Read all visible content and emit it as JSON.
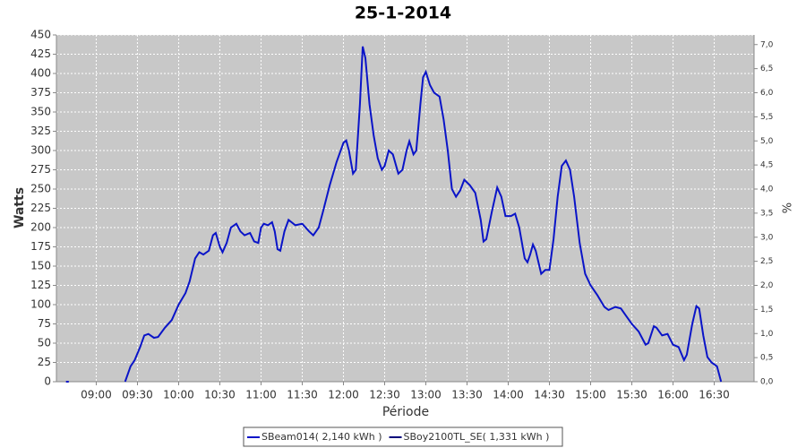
{
  "chart_data": {
    "type": "line",
    "title": "25-1-2014",
    "y_label": "Watts",
    "y2_label": "%",
    "x_label": "Période",
    "x": [
      "08:38",
      "08:40",
      null,
      "09:21",
      "09:25",
      "09:28",
      "09:32",
      "09:35",
      "09:38",
      "09:42",
      "09:45",
      "09:50",
      "09:55",
      "10:00",
      "10:05",
      "10:08",
      "10:12",
      "10:15",
      "10:18",
      "10:22",
      "10:25",
      "10:27",
      "10:30",
      "10:32",
      "10:35",
      "10:38",
      "10:42",
      "10:45",
      "10:48",
      "10:52",
      "10:55",
      "10:58",
      "11:00",
      "11:02",
      "11:05",
      "11:08",
      "11:10",
      "11:12",
      "11:14",
      "11:17",
      "11:20",
      "11:25",
      "11:30",
      "11:35",
      "11:38",
      "11:42",
      "11:45",
      "11:50",
      "11:55",
      "12:00",
      "12:02",
      "12:04",
      "12:07",
      "12:09",
      "12:12",
      "12:14",
      "12:16",
      "12:19",
      "12:22",
      "12:25",
      "12:28",
      "12:30",
      "12:33",
      "12:36",
      "12:40",
      "12:43",
      "12:46",
      "12:48",
      "12:51",
      "12:53",
      "12:56",
      "12:58",
      "13:00",
      "13:03",
      "13:06",
      "13:10",
      "13:13",
      "13:16",
      "13:19",
      "13:22",
      "13:25",
      "13:28",
      "13:32",
      "13:36",
      "13:40",
      "13:42",
      "13:44",
      "13:48",
      "13:52",
      "13:55",
      "13:58",
      "14:02",
      "14:05",
      "14:08",
      "14:12",
      "14:14",
      "14:16",
      "14:18",
      "14:20",
      "14:24",
      "14:27",
      "14:30",
      "14:33",
      "14:36",
      "14:39",
      "14:42",
      "14:45",
      "14:48",
      "14:52",
      "14:56",
      "15:00",
      "15:05",
      "15:10",
      "15:13",
      "15:18",
      "15:22",
      "15:26",
      "15:30",
      "15:35",
      "15:40",
      "15:42",
      "15:46",
      "15:48",
      "15:52",
      "15:56",
      "16:00",
      "16:04",
      "16:08",
      "16:10",
      "16:14",
      "16:17",
      "16:19",
      "16:22",
      "16:25",
      "16:28",
      "16:32",
      "16:35"
    ],
    "series": [
      {
        "name": "SBeam014( 2,140 kWh )",
        "color": "#0a14c8",
        "values": [
          0,
          0,
          null,
          0,
          20,
          28,
          45,
          60,
          62,
          57,
          58,
          70,
          80,
          100,
          115,
          130,
          160,
          168,
          165,
          170,
          190,
          193,
          175,
          168,
          180,
          200,
          205,
          195,
          190,
          193,
          182,
          180,
          200,
          205,
          203,
          207,
          195,
          172,
          170,
          195,
          210,
          203,
          205,
          195,
          190,
          200,
          220,
          255,
          285,
          310,
          313,
          300,
          270,
          275,
          360,
          435,
          420,
          360,
          320,
          290,
          275,
          280,
          300,
          295,
          270,
          275,
          300,
          312,
          295,
          300,
          360,
          395,
          402,
          385,
          375,
          370,
          340,
          300,
          250,
          240,
          248,
          262,
          255,
          245,
          210,
          182,
          185,
          220,
          252,
          240,
          215,
          215,
          218,
          200,
          160,
          155,
          165,
          178,
          170,
          140,
          145,
          145,
          185,
          240,
          280,
          287,
          275,
          240,
          180,
          140,
          125,
          112,
          97,
          93,
          97,
          95,
          85,
          75,
          65,
          48,
          50,
          72,
          70,
          60,
          62,
          48,
          45,
          28,
          35,
          75,
          98,
          95,
          60,
          32,
          25,
          20,
          0
        ]
      },
      {
        "name": "SBoy2100TL_SE( 1,331 kWh )",
        "color": "#00007a"
      }
    ],
    "xlim": [
      "08:31",
      "16:59"
    ],
    "xticks": [
      "09:00",
      "09:30",
      "10:00",
      "10:30",
      "11:00",
      "11:30",
      "12:00",
      "12:30",
      "13:00",
      "13:30",
      "14:00",
      "14:30",
      "15:00",
      "15:30",
      "16:00",
      "16:30"
    ],
    "ylim": [
      0,
      450
    ],
    "yticks": [
      0,
      25,
      50,
      75,
      100,
      125,
      150,
      175,
      200,
      225,
      250,
      275,
      300,
      325,
      350,
      375,
      400,
      425,
      450
    ],
    "y2lim": [
      0,
      7.2
    ],
    "y2ticks": [
      {
        "value": 0,
        "label": "0,0"
      },
      {
        "value": 0.5,
        "label": "0,5"
      },
      {
        "value": 1,
        "label": "1,0"
      },
      {
        "value": 1.5,
        "label": "1,5"
      },
      {
        "value": 2,
        "label": "2,0"
      },
      {
        "value": 2.5,
        "label": "2,5"
      },
      {
        "value": 3,
        "label": "3,0"
      },
      {
        "value": 3.5,
        "label": "3,5"
      },
      {
        "value": 4,
        "label": "4,0"
      },
      {
        "value": 4.5,
        "label": "4,5"
      },
      {
        "value": 5,
        "label": "5,0"
      },
      {
        "value": 5.5,
        "label": "5,5"
      },
      {
        "value": 6,
        "label": "6,0"
      },
      {
        "value": 6.5,
        "label": "6,5"
      },
      {
        "value": 7,
        "label": "7,0"
      }
    ],
    "grid": true
  }
}
